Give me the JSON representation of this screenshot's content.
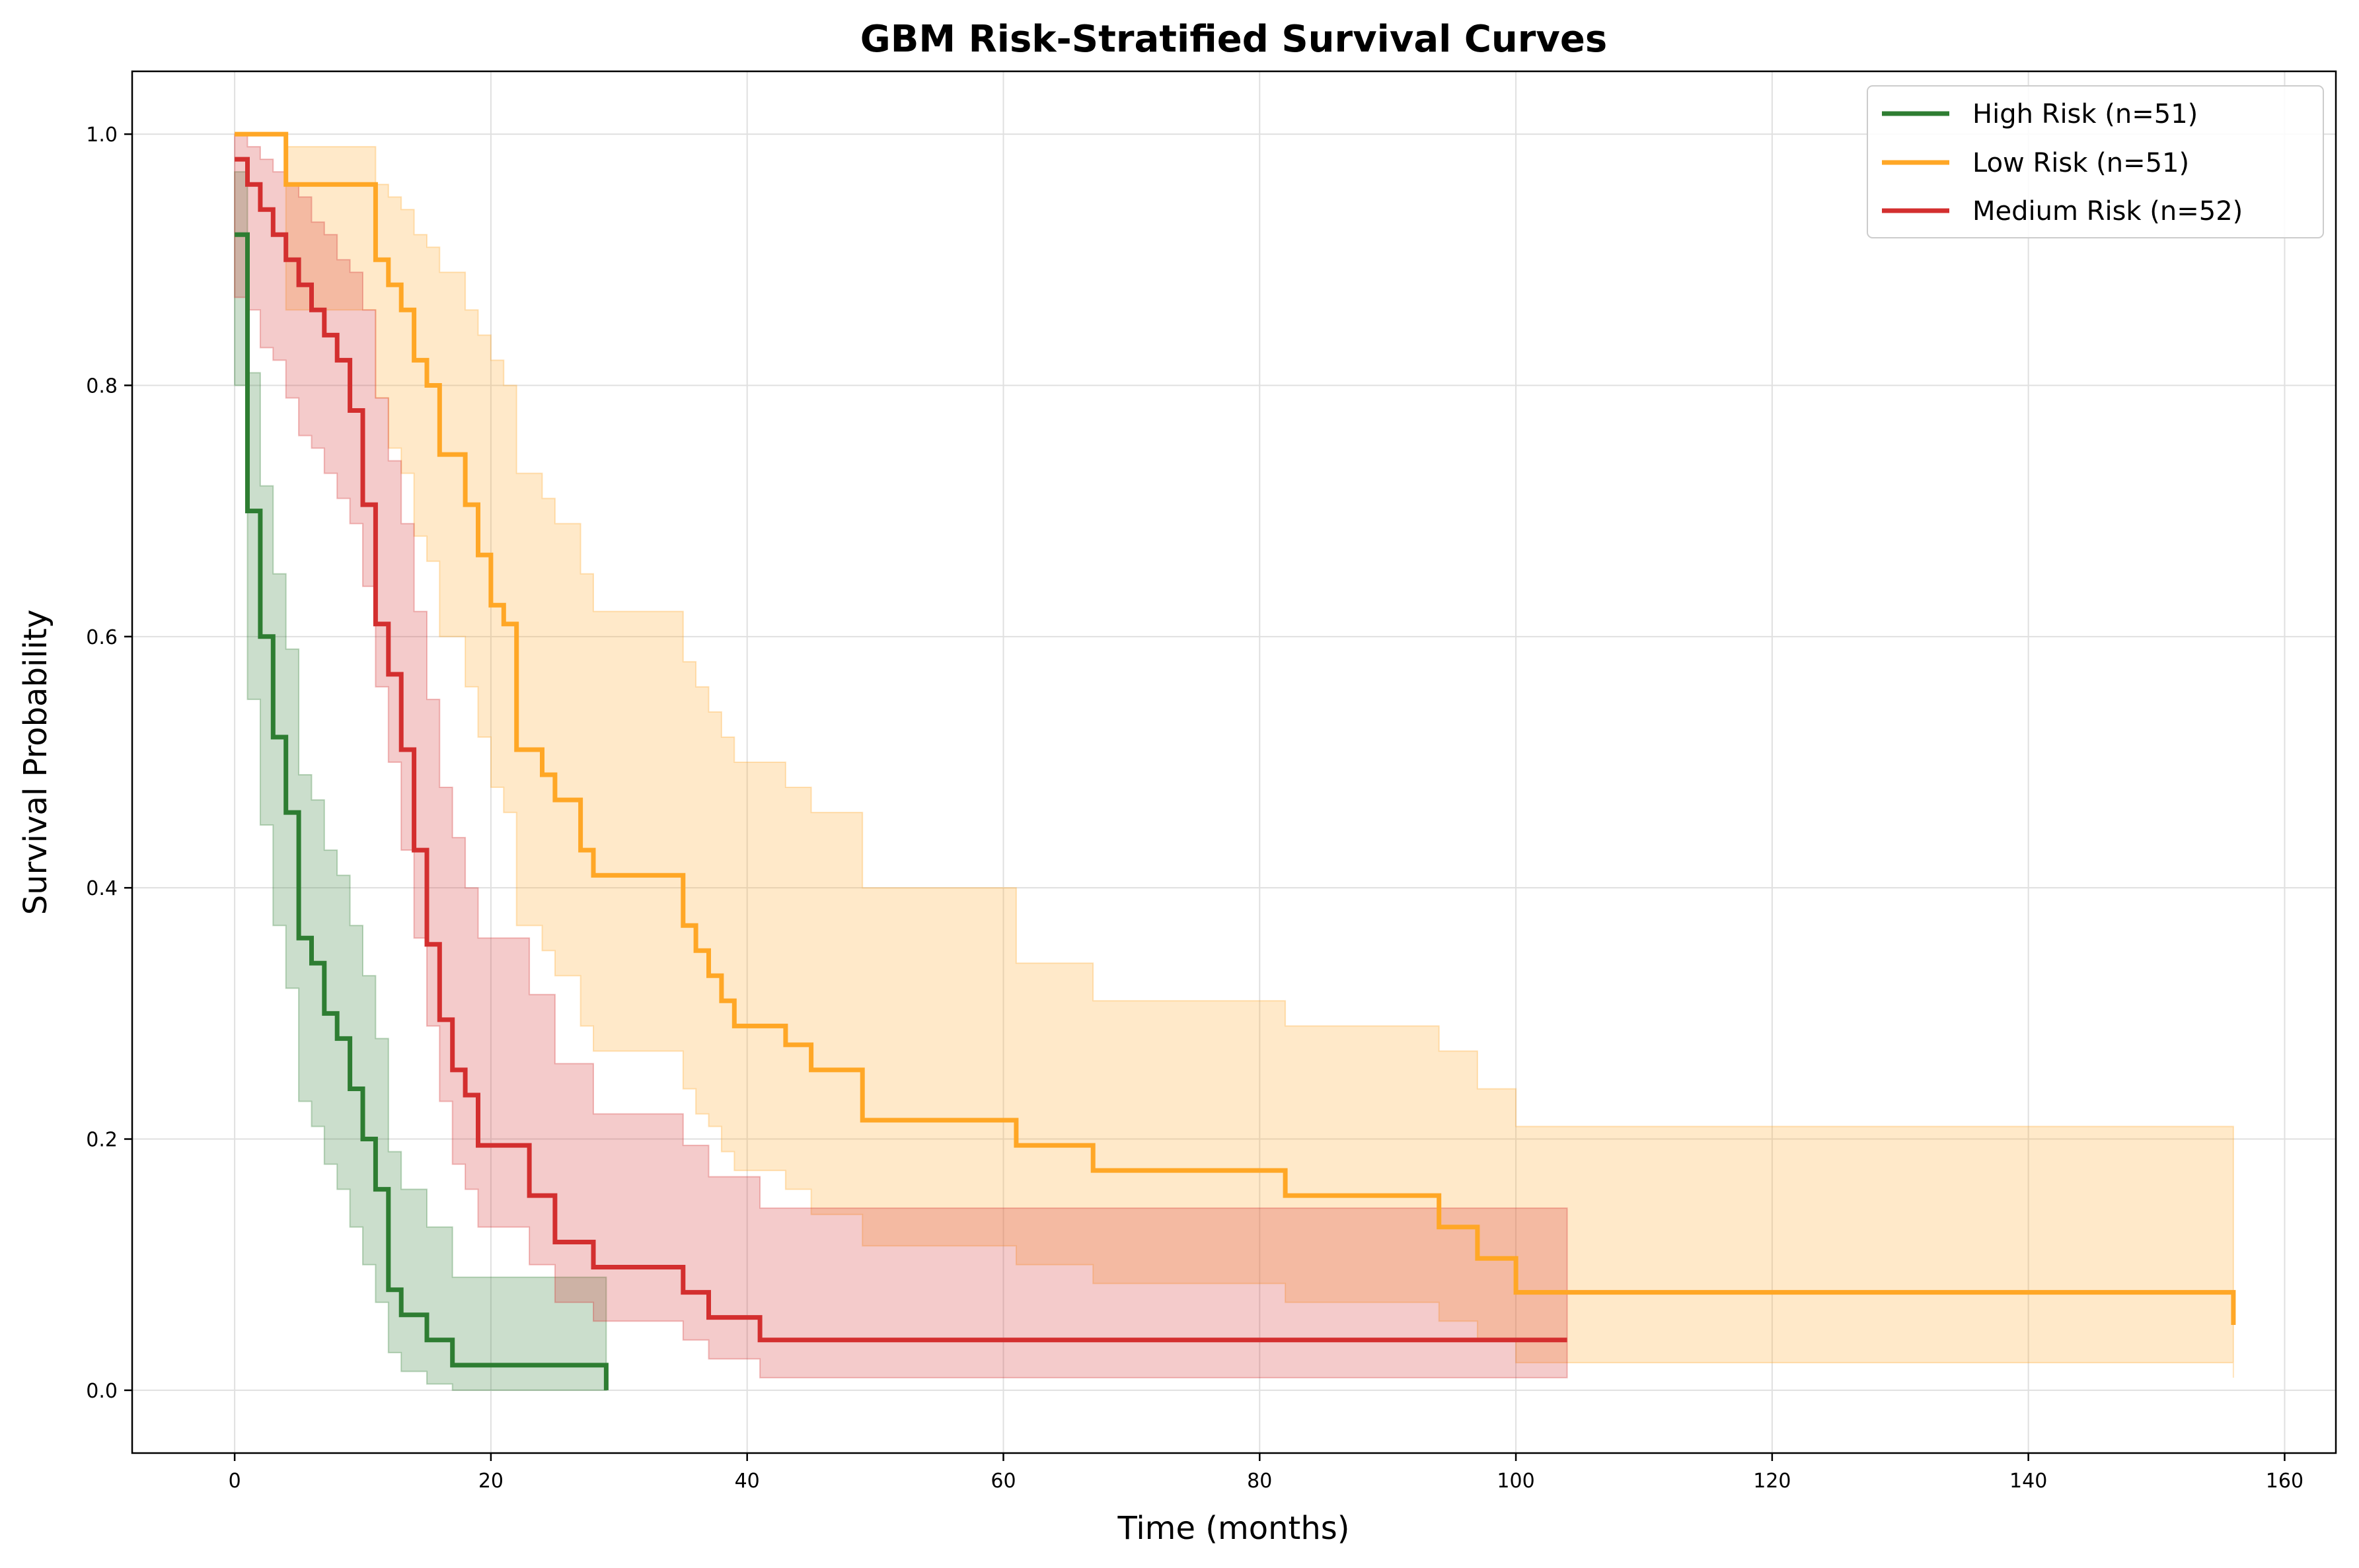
{
  "chart_data": {
    "type": "line",
    "subtype": "kaplan-meier-step",
    "title": "GBM Risk-Stratified Survival Curves",
    "xlabel": "Time (months)",
    "ylabel": "Survival Probability",
    "xlim": [
      -8,
      164
    ],
    "ylim": [
      -0.05,
      1.05
    ],
    "xticks": [
      0,
      20,
      40,
      60,
      80,
      100,
      120,
      140,
      160
    ],
    "yticks": [
      0.0,
      0.2,
      0.4,
      0.6,
      0.8,
      1.0
    ],
    "xtick_labels": [
      "0",
      "20",
      "40",
      "60",
      "80",
      "100",
      "120",
      "140",
      "160"
    ],
    "ytick_labels": [
      "0.0",
      "0.2",
      "0.4",
      "0.6",
      "0.8",
      "1.0"
    ],
    "grid": true,
    "legend_position": "top-right",
    "series": [
      {
        "name": "High Risk (n=51)",
        "color": "#2e7d32",
        "times": [
          0,
          1,
          2,
          3,
          4,
          5,
          6,
          7,
          8,
          9,
          10,
          11,
          12,
          13,
          15,
          17,
          29
        ],
        "survival": [
          0.92,
          0.7,
          0.6,
          0.52,
          0.46,
          0.36,
          0.34,
          0.3,
          0.28,
          0.24,
          0.2,
          0.16,
          0.08,
          0.06,
          0.04,
          0.02,
          0.0
        ],
        "ci_lower": [
          0.8,
          0.55,
          0.45,
          0.37,
          0.32,
          0.23,
          0.21,
          0.18,
          0.16,
          0.13,
          0.1,
          0.07,
          0.03,
          0.015,
          0.005,
          0.0,
          0.0
        ],
        "ci_upper": [
          0.97,
          0.81,
          0.72,
          0.65,
          0.59,
          0.49,
          0.47,
          0.43,
          0.41,
          0.37,
          0.33,
          0.28,
          0.19,
          0.16,
          0.13,
          0.09,
          0.09
        ]
      },
      {
        "name": "Low Risk (n=51)",
        "color": "#ffa726",
        "times": [
          0,
          4,
          11,
          12,
          13,
          14,
          15,
          16,
          18,
          19,
          20,
          21,
          22,
          24,
          25,
          27,
          28,
          35,
          36,
          37,
          38,
          39,
          43,
          45,
          49,
          61,
          67,
          82,
          94,
          97,
          100,
          156
        ],
        "survival": [
          1.0,
          0.96,
          0.9,
          0.88,
          0.86,
          0.82,
          0.8,
          0.745,
          0.705,
          0.665,
          0.625,
          0.61,
          0.51,
          0.49,
          0.47,
          0.43,
          0.41,
          0.37,
          0.35,
          0.33,
          0.31,
          0.29,
          0.275,
          0.255,
          0.215,
          0.195,
          0.175,
          0.155,
          0.13,
          0.105,
          0.078,
          0.052
        ],
        "ci_lower": [
          1.0,
          0.86,
          0.79,
          0.75,
          0.73,
          0.68,
          0.66,
          0.6,
          0.56,
          0.52,
          0.48,
          0.46,
          0.37,
          0.35,
          0.33,
          0.29,
          0.27,
          0.24,
          0.22,
          0.21,
          0.19,
          0.175,
          0.16,
          0.14,
          0.115,
          0.1,
          0.085,
          0.07,
          0.055,
          0.04,
          0.022,
          0.01
        ],
        "ci_upper": [
          1.0,
          0.99,
          0.96,
          0.95,
          0.94,
          0.92,
          0.91,
          0.89,
          0.86,
          0.84,
          0.82,
          0.8,
          0.73,
          0.71,
          0.69,
          0.65,
          0.62,
          0.58,
          0.56,
          0.54,
          0.52,
          0.5,
          0.48,
          0.46,
          0.4,
          0.34,
          0.31,
          0.29,
          0.27,
          0.24,
          0.21,
          0.18
        ]
      },
      {
        "name": "Medium Risk (n=52)",
        "color": "#d32f2f",
        "times": [
          0,
          1,
          2,
          3,
          4,
          5,
          6,
          7,
          8,
          9,
          10,
          11,
          12,
          13,
          14,
          15,
          16,
          17,
          18,
          19,
          23,
          25,
          28,
          35,
          37,
          41,
          104
        ],
        "survival": [
          0.98,
          0.96,
          0.94,
          0.92,
          0.9,
          0.88,
          0.86,
          0.84,
          0.82,
          0.78,
          0.705,
          0.61,
          0.57,
          0.51,
          0.43,
          0.355,
          0.295,
          0.255,
          0.235,
          0.195,
          0.155,
          0.118,
          0.098,
          0.078,
          0.058,
          0.04,
          0.04
        ],
        "ci_lower": [
          0.87,
          0.86,
          0.83,
          0.82,
          0.79,
          0.76,
          0.75,
          0.73,
          0.71,
          0.69,
          0.64,
          0.56,
          0.5,
          0.43,
          0.36,
          0.29,
          0.23,
          0.18,
          0.16,
          0.13,
          0.1,
          0.07,
          0.055,
          0.04,
          0.025,
          0.01,
          0.01
        ],
        "ci_upper": [
          1.0,
          0.99,
          0.98,
          0.97,
          0.96,
          0.95,
          0.93,
          0.92,
          0.9,
          0.89,
          0.86,
          0.79,
          0.74,
          0.69,
          0.62,
          0.55,
          0.48,
          0.44,
          0.4,
          0.36,
          0.315,
          0.26,
          0.22,
          0.195,
          0.17,
          0.145,
          0.12
        ]
      }
    ]
  }
}
